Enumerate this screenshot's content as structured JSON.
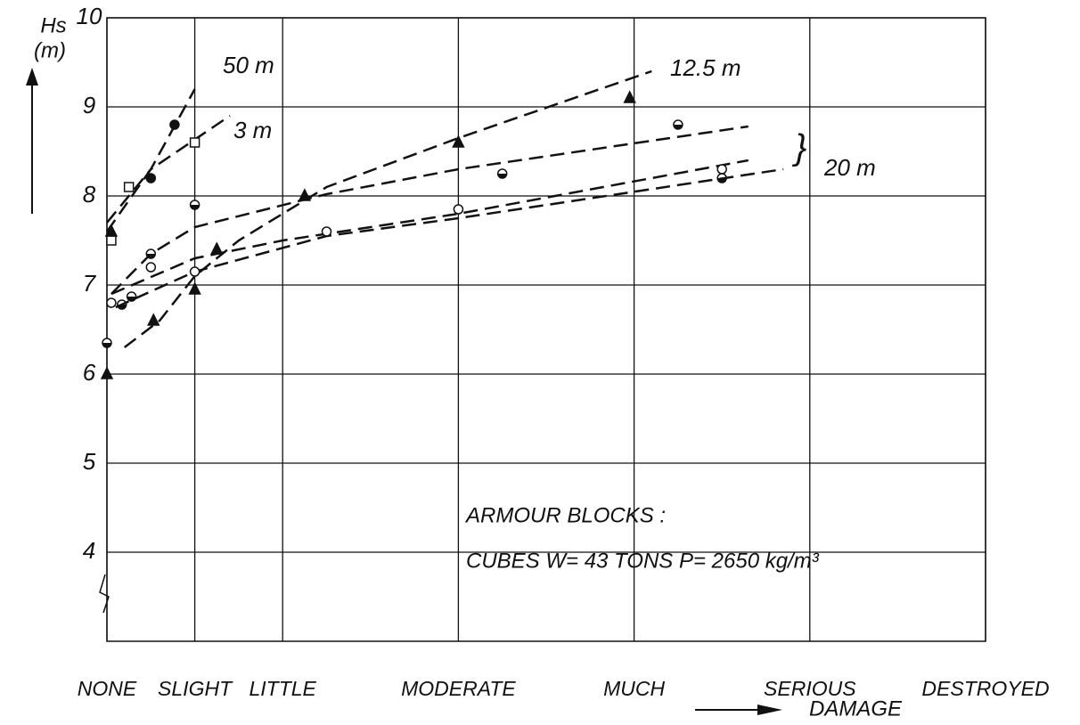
{
  "chart_data": {
    "type": "scatter",
    "y_label": "Hs",
    "y_unit": "(m)",
    "x_label": "DAMAGE",
    "annotations": [
      "ARMOUR BLOCKS :",
      "CUBES  W= 43 TONS  P= 2650 kg/m³"
    ],
    "xlim": [
      0,
      10
    ],
    "xticks": [
      {
        "value": 0,
        "label": "NONE"
      },
      {
        "value": 1,
        "label": "SLIGHT"
      },
      {
        "value": 2,
        "label": "LITTLE"
      },
      {
        "value": 4,
        "label": "MODERATE"
      },
      {
        "value": 6,
        "label": "MUCH"
      },
      {
        "value": 8,
        "label": "SERIOUS"
      },
      {
        "value": 10,
        "label": "DESTROYED"
      }
    ],
    "ylim": [
      3,
      10
    ],
    "yticks": [
      4,
      5,
      6,
      7,
      8,
      9,
      10
    ],
    "grid": true,
    "color": "#111111",
    "series": [
      {
        "name": "50 m",
        "marker": "circle-filled",
        "x": [
          0.5,
          0.77
        ],
        "y": [
          8.2,
          8.8
        ],
        "fits": [
          {
            "x": [
              0,
              0.5,
              1
            ],
            "y": [
              7.7,
              8.3,
              9.2
            ]
          }
        ]
      },
      {
        "name": "3 m",
        "marker": "square-open",
        "x": [
          0.05,
          0.25,
          1
        ],
        "y": [
          7.5,
          8.1,
          8.6
        ],
        "fits": [
          {
            "x": [
              0,
              0.5,
              1.4
            ],
            "y": [
              7.6,
              8.3,
              8.9
            ]
          }
        ]
      },
      {
        "name": "12.5 m",
        "marker": "triangle-filled",
        "x": [
          0,
          0.05,
          0.53,
          1,
          1.25,
          2.25,
          4,
          5.95
        ],
        "y": [
          6,
          7.6,
          6.6,
          6.95,
          7.4,
          8,
          8.6,
          9.1
        ],
        "fits": [
          {
            "x": [
              0.2,
              0.6,
              1,
              1.5,
              2.5,
              4,
              6.2
            ],
            "y": [
              6.3,
              6.6,
              7.1,
              7.5,
              8.1,
              8.65,
              9.4
            ]
          }
        ]
      },
      {
        "name": "20 m",
        "marker": "circle-half",
        "x": [
          0,
          0.17,
          0.28,
          0.5,
          1,
          4.5,
          6.5,
          7
        ],
        "y": [
          6.35,
          6.78,
          6.87,
          7.35,
          7.9,
          8.25,
          8.8,
          8.2
        ],
        "fits": [
          {
            "x": [
              0.05,
              0.5,
              1,
              2.5,
              4,
              7.3
            ],
            "y": [
              6.9,
              7.35,
              7.65,
              8.02,
              8.3,
              8.78
            ]
          },
          {
            "x": [
              0.05,
              1,
              2,
              4,
              7.3
            ],
            "y": [
              6.9,
              7.3,
              7.5,
              7.8,
              8.4
            ]
          }
        ]
      },
      {
        "marker": "circle-open",
        "x": [
          0.05,
          0.5,
          1,
          2.5,
          4,
          7
        ],
        "y": [
          6.8,
          7.2,
          7.15,
          7.6,
          7.85,
          8.3
        ],
        "fits": [
          {
            "x": [
              0.1,
              1,
              2.5,
              4,
              7.7
            ],
            "y": [
              6.75,
              7.15,
              7.55,
              7.75,
              8.3
            ]
          }
        ]
      }
    ]
  }
}
